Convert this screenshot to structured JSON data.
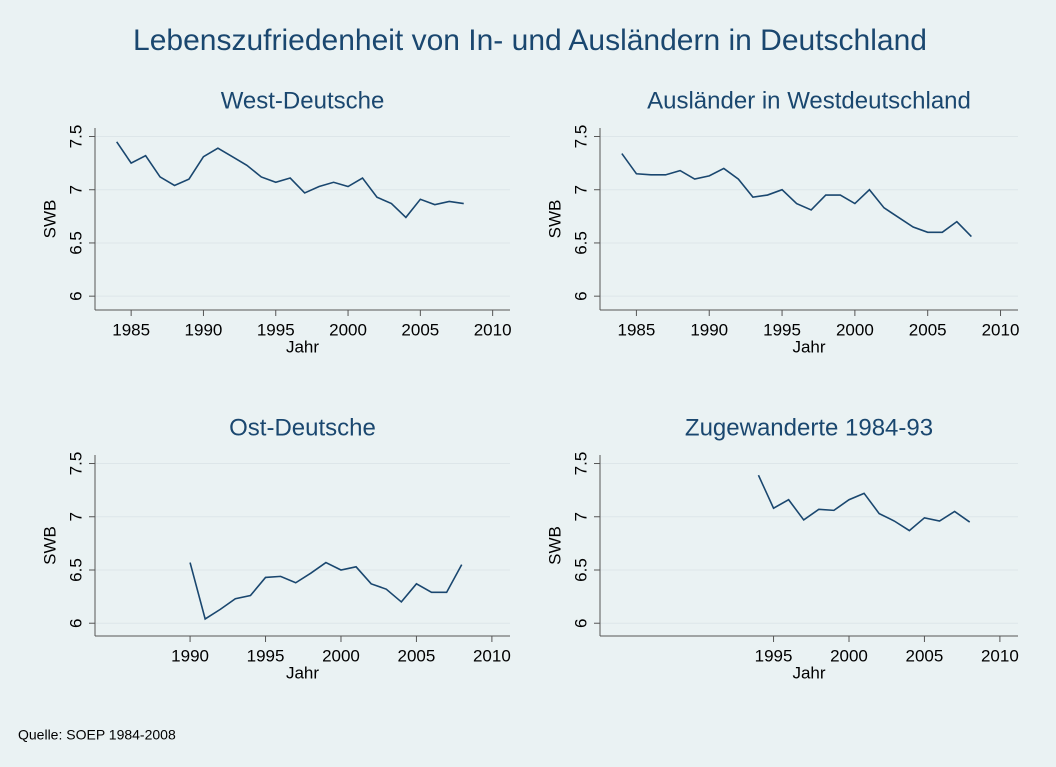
{
  "title": "Lebenszufriedenheit von In- und Ausländern in Deutschland",
  "note": "Quelle: SOEP 1984-2008",
  "chart_data": [
    {
      "type": "line",
      "title": "West-Deutsche",
      "xlabel": "Jahr",
      "ylabel": "SWB",
      "color": "#1a476f",
      "grid": true,
      "x": [
        1984,
        1985,
        1986,
        1987,
        1988,
        1989,
        1990,
        1991,
        1992,
        1993,
        1994,
        1995,
        1996,
        1997,
        1998,
        1999,
        2000,
        2001,
        2002,
        2003,
        2004,
        2005,
        2006,
        2007,
        2008
      ],
      "values": [
        7.45,
        7.25,
        7.32,
        7.12,
        7.04,
        7.1,
        7.31,
        7.39,
        7.31,
        7.23,
        7.12,
        7.07,
        7.11,
        6.97,
        7.03,
        7.07,
        7.03,
        7.11,
        6.93,
        6.87,
        6.74,
        6.91,
        6.86,
        6.89,
        6.87
      ],
      "xlim": [
        1982.5,
        2011.2
      ],
      "ylim": [
        5.87,
        7.58
      ],
      "xticks": [
        1985,
        1990,
        1995,
        2000,
        2005,
        2010
      ],
      "yticks": [
        6,
        6.5,
        7,
        7.5
      ]
    },
    {
      "type": "line",
      "title": "Ausländer in Westdeutschland",
      "xlabel": "Jahr",
      "ylabel": "SWB",
      "color": "#1a476f",
      "grid": true,
      "x": [
        1984,
        1985,
        1986,
        1987,
        1988,
        1989,
        1990,
        1991,
        1992,
        1993,
        1994,
        1995,
        1996,
        1997,
        1998,
        1999,
        2000,
        2001,
        2002,
        2003,
        2004,
        2005,
        2006,
        2007,
        2008
      ],
      "values": [
        7.34,
        7.15,
        7.14,
        7.14,
        7.18,
        7.1,
        7.13,
        7.2,
        7.1,
        6.93,
        6.95,
        7.0,
        6.87,
        6.81,
        6.95,
        6.95,
        6.87,
        7.0,
        6.83,
        6.74,
        6.65,
        6.6,
        6.6,
        6.7,
        6.56
      ],
      "xlim": [
        1982.5,
        2011.2
      ],
      "ylim": [
        5.87,
        7.58
      ],
      "xticks": [
        1985,
        1990,
        1995,
        2000,
        2005,
        2010
      ],
      "yticks": [
        6,
        6.5,
        7,
        7.5
      ]
    },
    {
      "type": "line",
      "title": "Ost-Deutsche",
      "xlabel": "Jahr",
      "ylabel": "SWB",
      "color": "#1a476f",
      "grid": true,
      "x": [
        1990,
        1991,
        1992,
        1993,
        1994,
        1995,
        1996,
        1997,
        1998,
        1999,
        2000,
        2001,
        2002,
        2003,
        2004,
        2005,
        2006,
        2007,
        2008
      ],
      "values": [
        6.57,
        6.04,
        6.13,
        6.23,
        6.26,
        6.43,
        6.44,
        6.38,
        6.47,
        6.57,
        6.5,
        6.53,
        6.37,
        6.32,
        6.2,
        6.37,
        6.29,
        6.29,
        6.55
      ],
      "xlim": [
        1983.7,
        2011.2
      ],
      "ylim": [
        5.88,
        7.58
      ],
      "xticks": [
        1990,
        1995,
        2000,
        2005,
        2010
      ],
      "yticks": [
        6,
        6.5,
        7,
        7.5
      ]
    },
    {
      "type": "line",
      "title": "Zugewanderte 1984-93",
      "xlabel": "Jahr",
      "ylabel": "SWB",
      "color": "#1a476f",
      "grid": true,
      "x": [
        1994,
        1995,
        1996,
        1997,
        1998,
        1999,
        2000,
        2001,
        2002,
        2003,
        2004,
        2005,
        2006,
        2007,
        2008
      ],
      "values": [
        7.39,
        7.08,
        7.16,
        6.97,
        7.07,
        7.06,
        7.16,
        7.22,
        7.03,
        6.96,
        6.87,
        6.99,
        6.96,
        7.05,
        6.95
      ],
      "xlim": [
        1983.5,
        2011.2
      ],
      "ylim": [
        5.88,
        7.58
      ],
      "xticks": [
        1995,
        2000,
        2005,
        2010
      ],
      "yticks": [
        6,
        6.5,
        7,
        7.5
      ]
    }
  ]
}
